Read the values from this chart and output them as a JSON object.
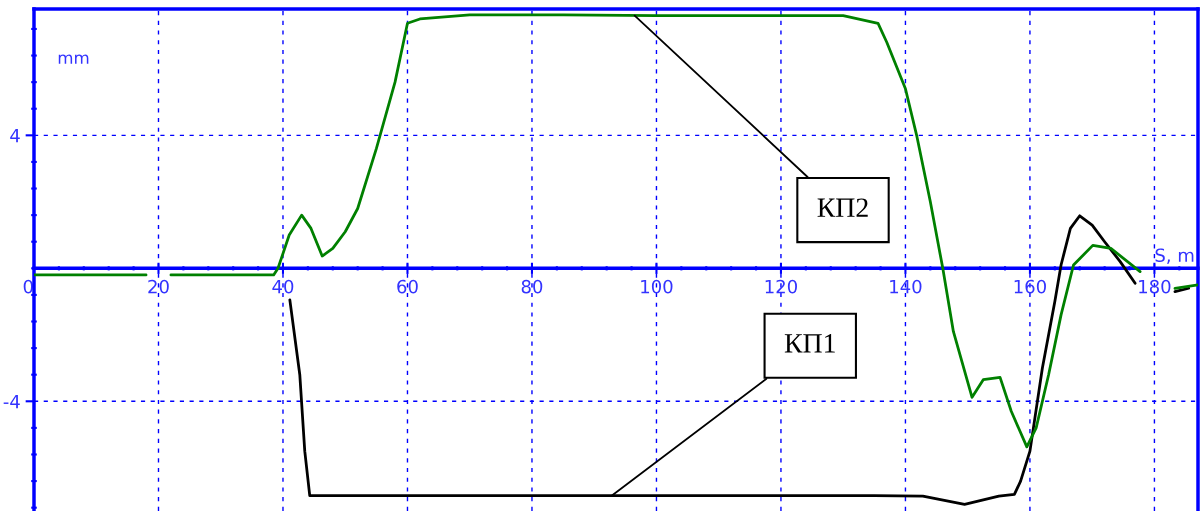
{
  "chart_data": {
    "type": "line",
    "xlabel": "S, m",
    "ylabel": "mm",
    "xlim": [
      0,
      187
    ],
    "ylim": [
      -7.3,
      7.8
    ],
    "xticks": [
      0,
      20,
      40,
      60,
      80,
      100,
      120,
      140,
      160,
      180
    ],
    "yticks": [
      -4,
      4
    ],
    "grid": true,
    "legend": false,
    "line_style": "solid",
    "marker": "none",
    "series": [
      {
        "color": "#000000",
        "x": [
          41.1,
          42.7,
          43.5,
          44.3,
          60,
          80,
          100,
          120,
          135,
          142.8,
          149.5,
          155,
          157.5,
          158.5,
          160,
          162,
          164,
          165,
          166.5,
          168,
          170,
          172,
          174.5,
          176.9,
          180,
          183.3,
          185.5
        ],
        "values": [
          -0.95,
          -3.2,
          -5.5,
          -6.84,
          -6.84,
          -6.84,
          -6.84,
          -6.84,
          -6.84,
          -6.85,
          -7.1,
          -6.85,
          -6.8,
          -6.4,
          -5.5,
          -3.0,
          -1.0,
          0.1,
          1.2,
          1.58,
          1.3,
          0.8,
          0.2,
          -0.45,
          null,
          -0.7,
          -0.6
        ]
      },
      {
        "color": "#008000",
        "x": [
          0,
          18,
          20,
          22,
          38.5,
          39.2,
          41,
          43,
          44.5,
          46.3,
          48,
          50,
          52,
          55,
          58,
          60,
          62,
          70,
          85,
          100,
          120,
          130,
          135.6,
          137,
          140,
          141.8,
          144,
          146,
          147.7,
          150.7,
          152.5,
          155.2,
          157,
          159.5,
          161,
          163,
          165,
          167,
          170.1,
          173,
          177.7,
          180,
          183.3,
          187
        ],
        "values": [
          -0.2,
          -0.2,
          null,
          -0.2,
          -0.2,
          0,
          1.0,
          1.6,
          1.2,
          0.37,
          0.6,
          1.1,
          1.8,
          3.6,
          5.6,
          7.37,
          7.5,
          7.62,
          7.62,
          7.6,
          7.6,
          7.6,
          7.37,
          6.8,
          5.4,
          4.0,
          2.0,
          0,
          -1.9,
          -3.88,
          -3.35,
          -3.28,
          -4.3,
          -5.37,
          -4.8,
          -3.2,
          -1.4,
          0.1,
          0.69,
          0.6,
          -0.1,
          null,
          -0.6,
          -0.5
        ]
      }
    ],
    "annotations": [
      {
        "text": "КП2",
        "x": 96.5,
        "y": 7.6
      },
      {
        "text": "КП1",
        "x": 92.8,
        "y": -6.84
      }
    ]
  }
}
